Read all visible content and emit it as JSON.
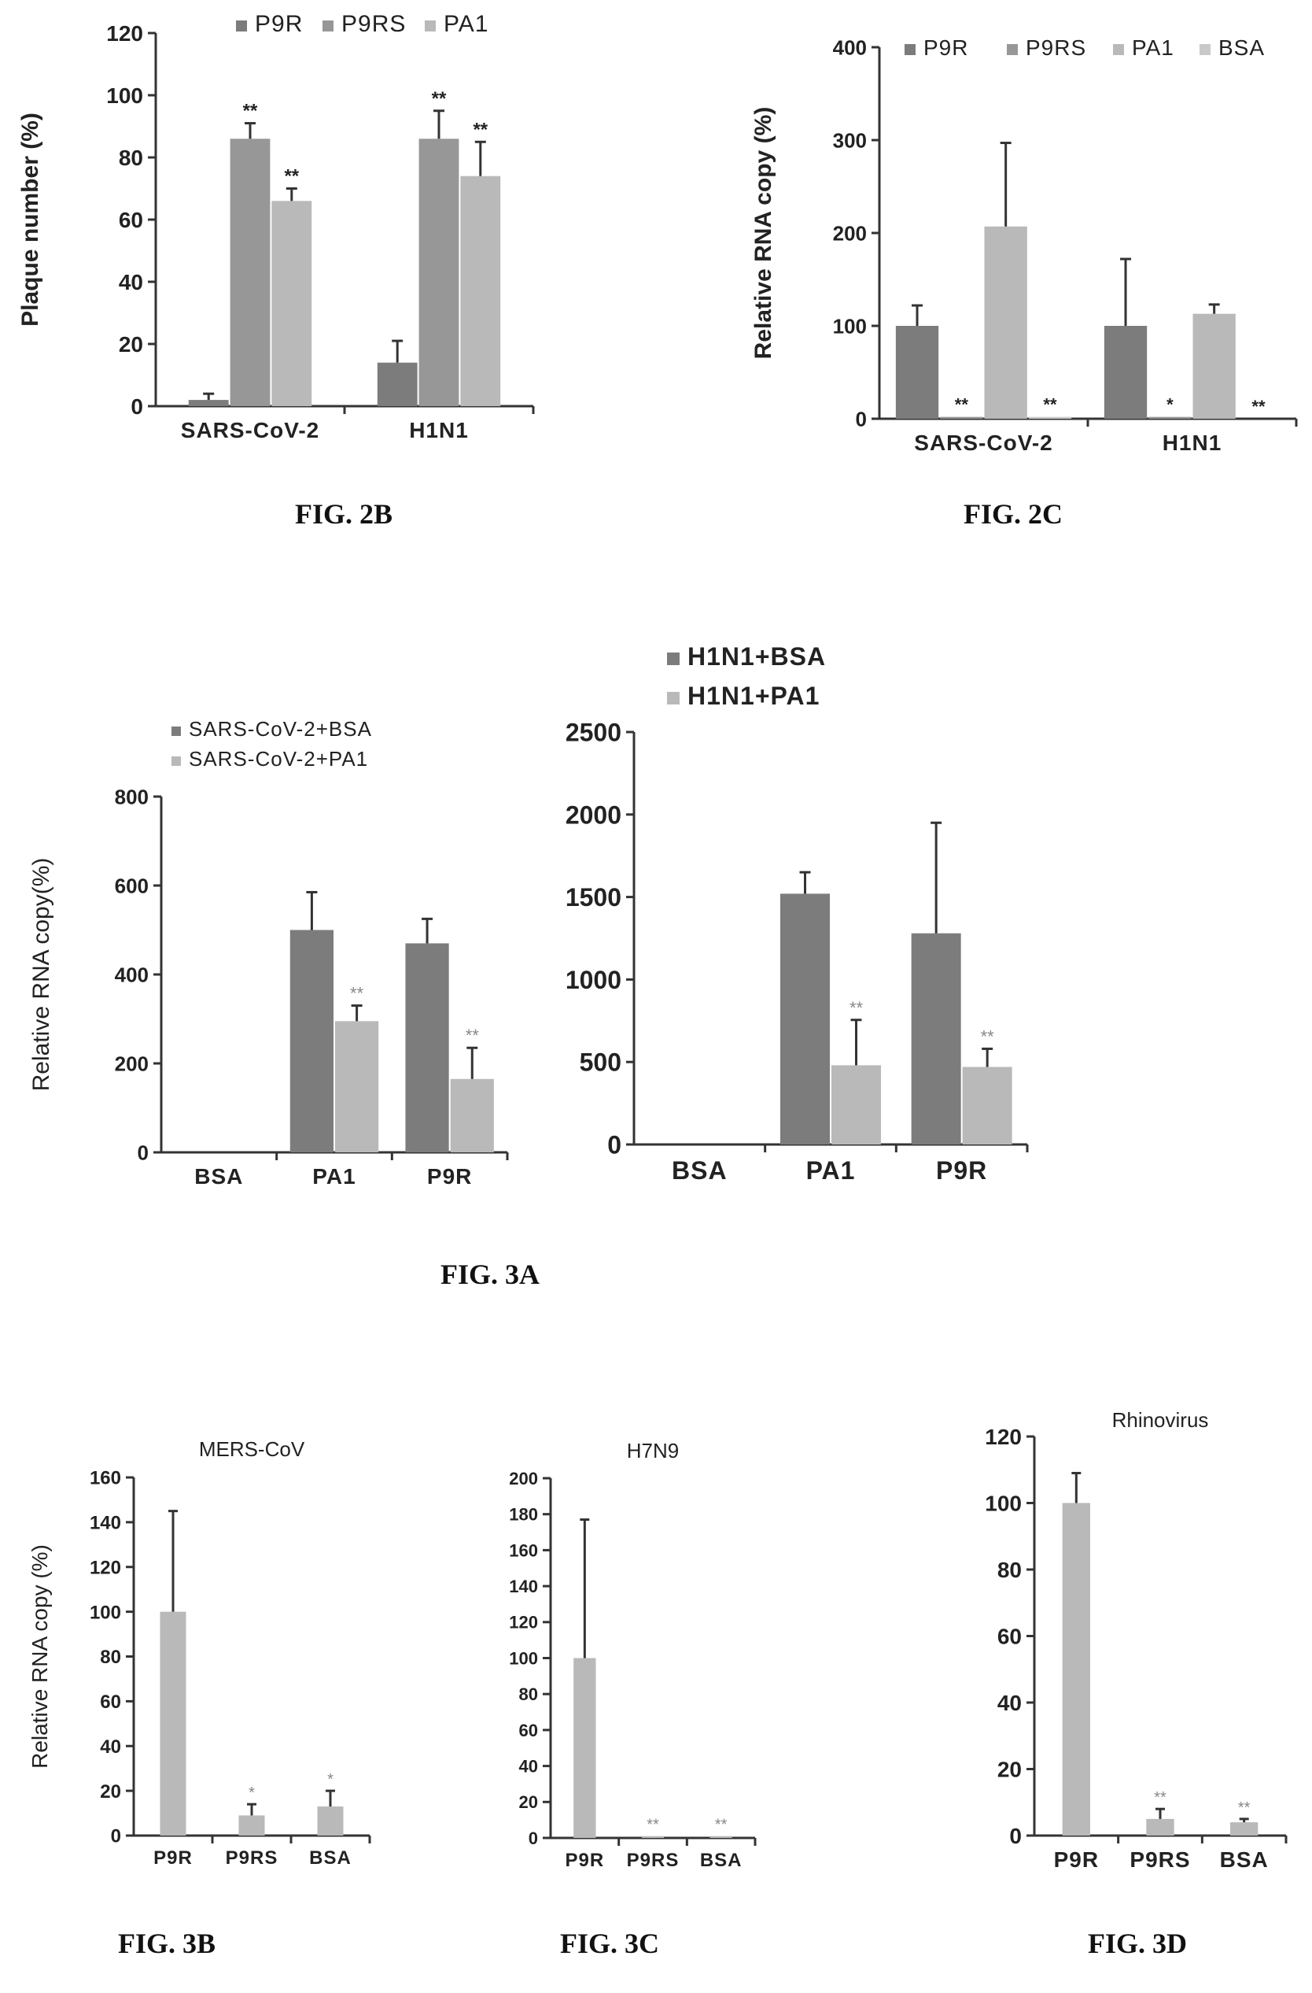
{
  "colors": {
    "dark": "#7c7c7c",
    "mid": "#979797",
    "light": "#b9b9b9",
    "lighter": "#c9c9c9",
    "axis": "#333333",
    "text": "#222222",
    "star": "#888888"
  },
  "captions": {
    "fig2b": "FIG. 2B",
    "fig2c": "FIG. 2C",
    "fig3a": "FIG. 3A",
    "fig3b": "FIG. 3B",
    "fig3c": "FIG. 3C",
    "fig3d": "FIG. 3D"
  },
  "chart_data": [
    {
      "id": "fig2b",
      "type": "bar",
      "categories": [
        "SARS-CoV-2",
        "H1N1"
      ],
      "ylabel": "Plaque number (%)",
      "ylim": [
        0,
        120
      ],
      "yticks": [
        0,
        20,
        40,
        60,
        80,
        100,
        120
      ],
      "legend_position": "top",
      "series": [
        {
          "name": "P9R",
          "color": "dark",
          "values": [
            2,
            14
          ],
          "errors": [
            2,
            7
          ],
          "stars": [
            "",
            ""
          ]
        },
        {
          "name": "P9RS",
          "color": "mid",
          "values": [
            86,
            86
          ],
          "errors": [
            5,
            9
          ],
          "stars": [
            "**",
            "**"
          ]
        },
        {
          "name": "PA1",
          "color": "light",
          "values": [
            66,
            74
          ],
          "errors": [
            4,
            11
          ],
          "stars": [
            "**",
            "**"
          ]
        }
      ]
    },
    {
      "id": "fig2c",
      "type": "bar",
      "categories": [
        "SARS-CoV-2",
        "H1N1"
      ],
      "ylabel": "Relative RNA copy (%)",
      "ylim": [
        0,
        400
      ],
      "yticks": [
        0,
        100,
        200,
        300,
        400
      ],
      "legend_position": "top",
      "series": [
        {
          "name": "P9R",
          "color": "dark",
          "values": [
            100,
            100
          ],
          "errors": [
            22,
            72
          ],
          "stars": [
            "",
            ""
          ]
        },
        {
          "name": "P9RS",
          "color": "mid",
          "values": [
            2,
            2
          ],
          "errors": [
            0,
            0
          ],
          "stars": [
            "**",
            "*"
          ]
        },
        {
          "name": "PA1",
          "color": "light",
          "values": [
            207,
            113
          ],
          "errors": [
            90,
            10
          ],
          "stars": [
            "",
            ""
          ]
        },
        {
          "name": "BSA",
          "color": "lighter",
          "values": [
            2,
            0
          ],
          "errors": [
            0,
            0
          ],
          "stars": [
            "**",
            "**"
          ]
        }
      ]
    },
    {
      "id": "fig3a-left",
      "type": "bar",
      "categories": [
        "BSA",
        "PA1",
        "P9R"
      ],
      "ylabel": "Relative RNA copy(%)",
      "ylim": [
        0,
        800
      ],
      "yticks": [
        0,
        200,
        400,
        600,
        800
      ],
      "legend_position": "top",
      "series": [
        {
          "name": "SARS-CoV-2+BSA",
          "color": "dark",
          "values": [
            0,
            500,
            470
          ],
          "errors": [
            0,
            85,
            55
          ],
          "stars": [
            "",
            "",
            ""
          ]
        },
        {
          "name": "SARS-CoV-2+PA1",
          "color": "light",
          "values": [
            0,
            295,
            165
          ],
          "errors": [
            0,
            35,
            70
          ],
          "stars": [
            "",
            "**",
            "**"
          ]
        }
      ]
    },
    {
      "id": "fig3a-right",
      "type": "bar",
      "categories": [
        "BSA",
        "PA1",
        "P9R"
      ],
      "ylabel": "",
      "ylim": [
        0,
        2500
      ],
      "yticks": [
        0,
        500,
        1000,
        1500,
        2000,
        2500
      ],
      "legend_position": "top",
      "series": [
        {
          "name": "H1N1+BSA",
          "color": "dark",
          "values": [
            0,
            1520,
            1280
          ],
          "errors": [
            0,
            130,
            670
          ],
          "stars": [
            "",
            "",
            ""
          ]
        },
        {
          "name": "H1N1+PA1",
          "color": "light",
          "values": [
            0,
            480,
            470
          ],
          "errors": [
            0,
            275,
            110
          ],
          "stars": [
            "",
            "**",
            "**"
          ]
        }
      ]
    },
    {
      "id": "fig3b",
      "type": "bar",
      "title": "MERS-CoV",
      "categories": [
        "P9R",
        "P9RS",
        "BSA"
      ],
      "ylabel": "Relative RNA copy (%)",
      "ylim": [
        0,
        160
      ],
      "yticks": [
        0,
        20,
        40,
        60,
        80,
        100,
        120,
        140,
        160
      ],
      "series": [
        {
          "color": "light",
          "values": [
            100,
            9,
            13
          ],
          "errors": [
            45,
            5,
            7
          ],
          "stars": [
            "",
            "*",
            "*"
          ]
        }
      ]
    },
    {
      "id": "fig3c",
      "type": "bar",
      "title": "H7N9",
      "categories": [
        "P9R",
        "P9RS",
        "BSA"
      ],
      "ylabel": "",
      "ylim": [
        0,
        200
      ],
      "yticks": [
        0,
        20,
        40,
        60,
        80,
        100,
        120,
        140,
        160,
        180,
        200
      ],
      "series": [
        {
          "color": "light",
          "values": [
            100,
            1,
            1
          ],
          "errors": [
            77,
            0,
            0
          ],
          "stars": [
            "",
            "**",
            "**"
          ]
        }
      ]
    },
    {
      "id": "fig3d",
      "type": "bar",
      "title": "Rhinovirus",
      "categories": [
        "P9R",
        "P9RS",
        "BSA"
      ],
      "ylabel": "",
      "ylim": [
        0,
        120
      ],
      "yticks": [
        0,
        20,
        40,
        60,
        80,
        100,
        120
      ],
      "series": [
        {
          "color": "light",
          "values": [
            100,
            5,
            4
          ],
          "errors": [
            9,
            3,
            1
          ],
          "stars": [
            "",
            "**",
            "**"
          ]
        }
      ]
    }
  ]
}
